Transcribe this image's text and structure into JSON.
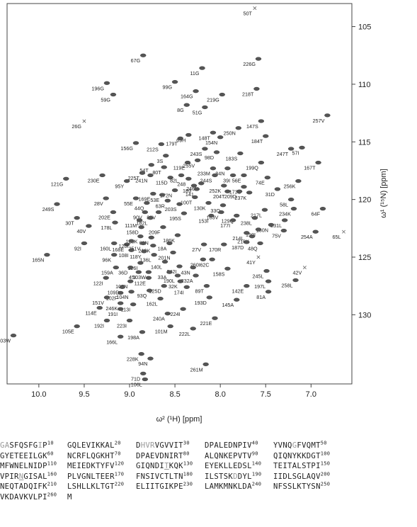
{
  "chart_data": {
    "type": "scatter",
    "title": "",
    "xlabel": "ω² (¹H) [ppm]",
    "ylabel": "ω¹ (¹⁵N) [ppm]",
    "xlim": [
      10.35,
      6.55
    ],
    "ylim": [
      103,
      136
    ],
    "x_ticks": [
      10.0,
      9.5,
      9.0,
      8.5,
      8.0,
      7.5,
      7.0
    ],
    "x_tick_labels": [
      "10.0",
      "9.5",
      "9.0",
      "8.5",
      "8.0",
      "7.5",
      "7.0"
    ],
    "y_ticks": [
      105,
      110,
      115,
      120,
      125,
      130
    ],
    "y_tick_labels": [
      "105",
      "110",
      "115",
      "120",
      "125",
      "130"
    ],
    "peaks": [
      {
        "label": "50T",
        "x": 7.62,
        "y": 103.4,
        "marker": "x"
      },
      {
        "label": "67G",
        "x": 8.85,
        "y": 107.5
      },
      {
        "label": "226G",
        "x": 7.58,
        "y": 107.8
      },
      {
        "label": "11G",
        "x": 8.2,
        "y": 108.6
      },
      {
        "label": "196G",
        "x": 9.25,
        "y": 109.9
      },
      {
        "label": "99G",
        "x": 8.5,
        "y": 109.8
      },
      {
        "label": "164G",
        "x": 8.27,
        "y": 110.6
      },
      {
        "label": "218T",
        "x": 7.6,
        "y": 110.4
      },
      {
        "label": "59G",
        "x": 9.18,
        "y": 110.9
      },
      {
        "label": "219G",
        "x": 7.98,
        "y": 110.9
      },
      {
        "label": "8G",
        "x": 8.37,
        "y": 111.8
      },
      {
        "label": "51G",
        "x": 8.17,
        "y": 112.0
      },
      {
        "label": "257V",
        "x": 6.82,
        "y": 112.7
      },
      {
        "label": "26G",
        "x": 9.5,
        "y": 113.2,
        "marker": "x"
      },
      {
        "label": "147S",
        "x": 7.55,
        "y": 113.2
      },
      {
        "label": "250N",
        "x": 7.8,
        "y": 113.8
      },
      {
        "label": "148T",
        "x": 8.08,
        "y": 114.2
      },
      {
        "label": "69H",
        "x": 8.35,
        "y": 114.4
      },
      {
        "label": "154N",
        "x": 8.0,
        "y": 114.6
      },
      {
        "label": "184T",
        "x": 7.5,
        "y": 114.5
      },
      {
        "label": "179T",
        "x": 8.44,
        "y": 114.7
      },
      {
        "label": "156G",
        "x": 8.93,
        "y": 115.1
      },
      {
        "label": "212S",
        "x": 8.65,
        "y": 115.2
      },
      {
        "label": "243S",
        "x": 8.17,
        "y": 115.6
      },
      {
        "label": "57I",
        "x": 7.1,
        "y": 115.5
      },
      {
        "label": "247T",
        "x": 7.22,
        "y": 115.6
      },
      {
        "label": "98D",
        "x": 8.04,
        "y": 115.9
      },
      {
        "label": "183S",
        "x": 7.78,
        "y": 116.0
      },
      {
        "label": "3S",
        "x": 8.6,
        "y": 116.2
      },
      {
        "label": "255V",
        "x": 8.25,
        "y": 116.6
      },
      {
        "label": "119E",
        "x": 8.36,
        "y": 116.8
      },
      {
        "label": "199Q",
        "x": 7.55,
        "y": 116.8
      },
      {
        "label": "167T",
        "x": 6.92,
        "y": 116.8
      },
      {
        "label": "54T",
        "x": 8.76,
        "y": 117.0
      },
      {
        "label": "80T",
        "x": 8.62,
        "y": 117.2
      },
      {
        "label": "233M",
        "x": 8.08,
        "y": 117.3
      },
      {
        "label": "84N",
        "x": 7.92,
        "y": 117.3
      },
      {
        "label": "225T",
        "x": 8.86,
        "y": 117.7
      },
      {
        "label": "241N",
        "x": 8.77,
        "y": 117.9
      },
      {
        "label": "230E",
        "x": 9.3,
        "y": 117.9
      },
      {
        "label": "115D",
        "x": 8.55,
        "y": 118.1
      },
      {
        "label": "82L",
        "x": 8.43,
        "y": 117.9
      },
      {
        "label": "244S",
        "x": 8.06,
        "y": 117.9
      },
      {
        "label": "39I",
        "x": 7.86,
        "y": 117.9
      },
      {
        "label": "56E",
        "x": 7.74,
        "y": 117.9
      },
      {
        "label": "74E",
        "x": 7.48,
        "y": 118.1
      },
      {
        "label": "121G",
        "x": 9.7,
        "y": 118.2
      },
      {
        "label": "95Y",
        "x": 9.03,
        "y": 118.4
      },
      {
        "label": "248",
        "x": 8.35,
        "y": 118.2
      },
      {
        "label": "256K",
        "x": 7.14,
        "y": 118.4
      },
      {
        "label": "246N",
        "x": 8.21,
        "y": 118.6
      },
      {
        "label": "189",
        "x": 8.29,
        "y": 118.8
      },
      {
        "label": "252K",
        "x": 7.96,
        "y": 118.8
      },
      {
        "label": "173S",
        "x": 7.74,
        "y": 118.9
      },
      {
        "label": "31D",
        "x": 7.37,
        "y": 119.1
      },
      {
        "label": "172N",
        "x": 8.5,
        "y": 119.2
      },
      {
        "label": "141",
        "x": 8.26,
        "y": 119.1
      },
      {
        "label": "204T",
        "x": 7.92,
        "y": 119.3
      },
      {
        "label": "209D",
        "x": 7.79,
        "y": 119.3
      },
      {
        "label": "237K",
        "x": 7.68,
        "y": 119.4
      },
      {
        "label": "169E",
        "x": 8.74,
        "y": 119.5
      },
      {
        "label": "53E",
        "x": 8.64,
        "y": 119.6
      },
      {
        "label": "28V",
        "x": 9.26,
        "y": 119.9
      },
      {
        "label": "55E",
        "x": 8.93,
        "y": 119.9
      },
      {
        "label": "100T",
        "x": 8.28,
        "y": 119.8
      },
      {
        "label": "58L",
        "x": 7.22,
        "y": 120.0
      },
      {
        "label": "63R",
        "x": 8.58,
        "y": 120.1
      },
      {
        "label": "249S",
        "x": 9.8,
        "y": 120.4
      },
      {
        "label": "44Q",
        "x": 8.81,
        "y": 120.3
      },
      {
        "label": "203S",
        "x": 8.45,
        "y": 120.4
      },
      {
        "label": "33Q",
        "x": 7.97,
        "y": 120.5
      },
      {
        "label": "130K",
        "x": 8.13,
        "y": 120.3
      },
      {
        "label": "64F",
        "x": 6.87,
        "y": 120.8
      },
      {
        "label": "234K",
        "x": 7.19,
        "y": 120.8
      },
      {
        "label": "217L",
        "x": 7.51,
        "y": 120.9
      },
      {
        "label": "202E",
        "x": 9.18,
        "y": 121.1
      },
      {
        "label": "90V",
        "x": 8.83,
        "y": 121.1
      },
      {
        "label": "88V",
        "x": 8.68,
        "y": 121.1
      },
      {
        "label": "195S",
        "x": 8.4,
        "y": 121.2
      },
      {
        "label": "163V",
        "x": 7.99,
        "y": 121.1
      },
      {
        "label": "153I",
        "x": 8.1,
        "y": 121.4
      },
      {
        "label": "129Q",
        "x": 7.82,
        "y": 121.4
      },
      {
        "label": "30T",
        "x": 9.58,
        "y": 121.6
      },
      {
        "label": "182L",
        "x": 8.77,
        "y": 121.6
      },
      {
        "label": "238L",
        "x": 7.62,
        "y": 121.6
      },
      {
        "label": "231L",
        "x": 7.29,
        "y": 121.8
      },
      {
        "label": "178L",
        "x": 9.16,
        "y": 122.0
      },
      {
        "label": "111M",
        "x": 8.89,
        "y": 121.8
      },
      {
        "label": "177I",
        "x": 7.86,
        "y": 121.8
      },
      {
        "label": "180N",
        "x": 7.44,
        "y": 122.2
      },
      {
        "label": "40V",
        "x": 9.45,
        "y": 122.3
      },
      {
        "label": "158D",
        "x": 8.87,
        "y": 122.4
      },
      {
        "label": "209F",
        "x": 8.63,
        "y": 122.4
      },
      {
        "label": "150I",
        "x": 7.58,
        "y": 122.6
      },
      {
        "label": "75V",
        "x": 7.3,
        "y": 122.7
      },
      {
        "label": "254A",
        "x": 6.95,
        "y": 122.8
      },
      {
        "label": "65L",
        "x": 6.64,
        "y": 122.8,
        "marker": "x"
      },
      {
        "label": "214L",
        "x": 7.71,
        "y": 122.9
      },
      {
        "label": "216K",
        "x": 7.65,
        "y": 123.2
      },
      {
        "label": "128K",
        "x": 8.88,
        "y": 123.2
      },
      {
        "label": "61N",
        "x": 8.76,
        "y": 123.3
      },
      {
        "label": "186K",
        "x": 8.47,
        "y": 123.1
      },
      {
        "label": "187D",
        "x": 7.71,
        "y": 123.7
      },
      {
        "label": "48Q",
        "x": 7.56,
        "y": 123.8
      },
      {
        "label": "92I",
        "x": 9.5,
        "y": 123.8
      },
      {
        "label": "160L",
        "x": 9.17,
        "y": 123.8
      },
      {
        "label": "168E",
        "x": 9.03,
        "y": 123.9
      },
      {
        "label": "120I",
        "x": 8.98,
        "y": 123.6
      },
      {
        "label": "251V",
        "x": 8.85,
        "y": 123.8
      },
      {
        "label": "210K",
        "x": 8.74,
        "y": 124.0
      },
      {
        "label": "18A",
        "x": 8.56,
        "y": 123.8
      },
      {
        "label": "27V",
        "x": 8.18,
        "y": 123.9
      },
      {
        "label": "170R",
        "x": 7.96,
        "y": 123.9
      },
      {
        "label": "165N",
        "x": 9.91,
        "y": 124.8
      },
      {
        "label": "108I",
        "x": 8.98,
        "y": 124.4
      },
      {
        "label": "118Y",
        "x": 8.84,
        "y": 124.5
      },
      {
        "label": "201N",
        "x": 8.52,
        "y": 124.6
      },
      {
        "label": "96K",
        "x": 9.17,
        "y": 124.8
      },
      {
        "label": "136L",
        "x": 8.73,
        "y": 124.8
      },
      {
        "label": "41Y",
        "x": 7.58,
        "y": 125.0,
        "marker": "x"
      },
      {
        "label": "140L",
        "x": 8.61,
        "y": 125.4
      },
      {
        "label": "260I",
        "x": 8.19,
        "y": 125.2
      },
      {
        "label": "62C",
        "x": 8.09,
        "y": 125.2
      },
      {
        "label": "126I",
        "x": 8.88,
        "y": 125.5
      },
      {
        "label": "159A",
        "x": 9.15,
        "y": 125.9
      },
      {
        "label": "36D",
        "x": 8.99,
        "y": 125.9
      },
      {
        "label": "242I",
        "x": 8.45,
        "y": 125.8
      },
      {
        "label": "43N",
        "x": 8.3,
        "y": 125.9
      },
      {
        "label": "158S",
        "x": 7.92,
        "y": 126.0
      },
      {
        "label": "42V",
        "x": 7.07,
        "y": 125.9,
        "marker": "x"
      },
      {
        "label": "245L",
        "x": 7.49,
        "y": 126.2
      },
      {
        "label": "45I",
        "x": 8.9,
        "y": 126.3
      },
      {
        "label": "103W",
        "x": 8.79,
        "y": 126.3
      },
      {
        "label": "33A",
        "x": 8.56,
        "y": 126.3
      },
      {
        "label": "190L",
        "x": 8.47,
        "y": 126.6
      },
      {
        "label": "232A",
        "x": 8.27,
        "y": 126.6
      },
      {
        "label": "122I",
        "x": 9.26,
        "y": 126.8
      },
      {
        "label": "112E",
        "x": 8.79,
        "y": 126.8
      },
      {
        "label": "107N",
        "x": 8.99,
        "y": 127.1
      },
      {
        "label": "32K",
        "x": 8.44,
        "y": 127.1
      },
      {
        "label": "258L",
        "x": 7.17,
        "y": 127.0
      },
      {
        "label": "197L",
        "x": 7.47,
        "y": 127.1
      },
      {
        "label": "125D",
        "x": 8.62,
        "y": 127.5
      },
      {
        "label": "174I",
        "x": 8.37,
        "y": 127.6
      },
      {
        "label": "89T",
        "x": 8.15,
        "y": 127.5
      },
      {
        "label": "142E",
        "x": 7.71,
        "y": 127.5
      },
      {
        "label": "109D",
        "x": 9.08,
        "y": 127.6
      },
      {
        "label": "93Q",
        "x": 8.78,
        "y": 127.9
      },
      {
        "label": "104N",
        "x": 8.98,
        "y": 128.0
      },
      {
        "label": "81A",
        "x": 7.47,
        "y": 128.0
      },
      {
        "label": "102F",
        "x": 9.1,
        "y": 128.1
      },
      {
        "label": "151V",
        "x": 9.25,
        "y": 128.5
      },
      {
        "label": "162L",
        "x": 8.66,
        "y": 128.6
      },
      {
        "label": "193D",
        "x": 8.12,
        "y": 128.5
      },
      {
        "label": "145A",
        "x": 7.82,
        "y": 128.7
      },
      {
        "label": "246K",
        "x": 9.1,
        "y": 129.0
      },
      {
        "label": "113I",
        "x": 8.96,
        "y": 129.1
      },
      {
        "label": "114E",
        "x": 9.33,
        "y": 129.4
      },
      {
        "label": "191I",
        "x": 9.1,
        "y": 129.5
      },
      {
        "label": "224I",
        "x": 8.41,
        "y": 129.5
      },
      {
        "label": "240A",
        "x": 8.58,
        "y": 129.9
      },
      {
        "label": "221E",
        "x": 8.06,
        "y": 130.3
      },
      {
        "label": "192I",
        "x": 9.25,
        "y": 130.5
      },
      {
        "label": "223I",
        "x": 9.0,
        "y": 130.5
      },
      {
        "label": "105E",
        "x": 9.58,
        "y": 131.0
      },
      {
        "label": "101M",
        "x": 8.55,
        "y": 131.0
      },
      {
        "label": "222L",
        "x": 8.3,
        "y": 131.2
      },
      {
        "label": "198A",
        "x": 8.86,
        "y": 131.5
      },
      {
        "label": "103W",
        "x": 10.28,
        "y": 131.8
      },
      {
        "label": "166L",
        "x": 9.1,
        "y": 131.9
      },
      {
        "label": "228K",
        "x": 8.87,
        "y": 133.4
      },
      {
        "label": "94N",
        "x": 8.77,
        "y": 133.8
      },
      {
        "label": "261M",
        "x": 8.16,
        "y": 134.3
      },
      {
        "label": "71D",
        "x": 8.85,
        "y": 135.1
      },
      {
        "label": "106L",
        "x": 8.83,
        "y": 135.6
      }
    ]
  },
  "sequence": {
    "rows": [
      [
        {
          "t": "G",
          "c": "g"
        },
        {
          "t": "A",
          "c": "g"
        },
        {
          "t": "SFQSFG"
        },
        {
          "t": "I",
          "c": "g"
        },
        {
          "t": "P"
        },
        {
          "n": "10"
        },
        {
          "t": "GQLEVIKKAL"
        },
        {
          "n": "20"
        },
        {
          "t": "D"
        },
        {
          "t": "HVR",
          "c": "g"
        },
        {
          "t": "VGVVIT"
        },
        {
          "n": "30"
        },
        {
          "t": "DPALEDNPIV"
        },
        {
          "n": "40"
        },
        {
          "t": "YVNQ"
        },
        {
          "t": "G",
          "c": "g"
        },
        {
          "t": "FVQMT"
        },
        {
          "n": "50"
        }
      ],
      [
        {
          "t": "GYETEEILGK"
        },
        {
          "n": "60"
        },
        {
          "t": "NCRFLQGKHT"
        },
        {
          "n": "70"
        },
        {
          "t": "DPAEVDNIRT"
        },
        {
          "n": "80"
        },
        {
          "t": "ALQNKEPVTV"
        },
        {
          "n": "90"
        },
        {
          "t": "QIQNYKKDGT"
        },
        {
          "n": "100"
        }
      ],
      [
        {
          "t": "MFWNELNIDP"
        },
        {
          "n": "110"
        },
        {
          "t": "MEIEDKTYFV"
        },
        {
          "n": "120"
        },
        {
          "t": "GIQNDI"
        },
        {
          "t": "T",
          "c": "g u"
        },
        {
          "t": "KQK"
        },
        {
          "n": "130"
        },
        {
          "t": "EYEKLLEDSL"
        },
        {
          "n": "140"
        },
        {
          "t": "TEITALSTPI"
        },
        {
          "n": "150"
        }
      ],
      [
        {
          "t": "VPIR"
        },
        {
          "t": "N",
          "c": "g u"
        },
        {
          "t": "GISAL"
        },
        {
          "n": "160"
        },
        {
          "t": "PLVGNLTEER"
        },
        {
          "n": "170"
        },
        {
          "t": "FNSIVCTLTN"
        },
        {
          "n": "180"
        },
        {
          "t": "ILSTSK"
        },
        {
          "t": "D",
          "c": "g"
        },
        {
          "t": "D"
        },
        {
          "t": "YL"
        },
        {
          "n": "190"
        },
        {
          "t": "IIDLSGLAQV"
        },
        {
          "n": "200"
        }
      ],
      [
        {
          "t": "NEQTADQIFK"
        },
        {
          "n": "210"
        },
        {
          "t": "LSHLLKLTGT"
        },
        {
          "n": "220"
        },
        {
          "t": "ELIITGIKPE"
        },
        {
          "n": "230"
        },
        {
          "t": "LAMKMNKLDA"
        },
        {
          "n": "240"
        },
        {
          "t": "NFSSLKTYSN"
        },
        {
          "n": "250"
        }
      ],
      [
        {
          "t": "VKDAVKVLPI"
        },
        {
          "n": "260"
        },
        {
          "t": "M"
        }
      ]
    ]
  }
}
